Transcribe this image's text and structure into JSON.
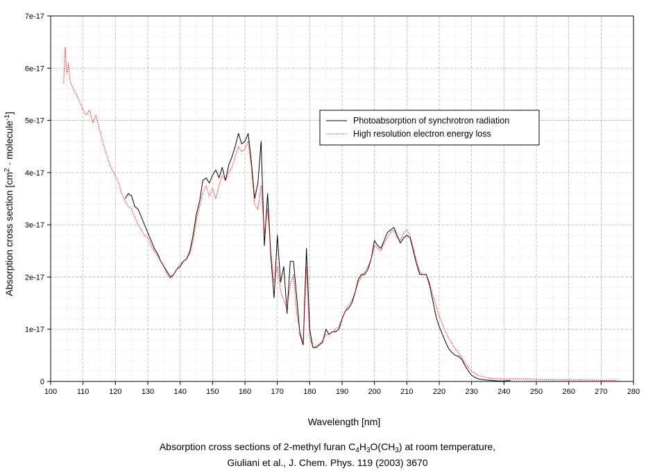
{
  "chart_data": {
    "type": "line",
    "xlabel": "Wavelength [nm]",
    "ylabel": {
      "prefix": "Absorption cross section [cm",
      "sup1": "2",
      "middle": " · molecule",
      "sup2": "-1",
      "suffix": "]"
    },
    "xlim": [
      100,
      280
    ],
    "ylim": [
      0,
      7e-17
    ],
    "x_ticks": [
      100,
      110,
      120,
      130,
      140,
      150,
      160,
      170,
      180,
      190,
      200,
      210,
      220,
      230,
      240,
      250,
      260,
      270,
      280
    ],
    "y_ticks": [
      {
        "value": 0,
        "label": "0"
      },
      {
        "value": 1e-17,
        "label": "1e-17"
      },
      {
        "value": 2e-17,
        "label": "2e-17"
      },
      {
        "value": 3e-17,
        "label": "3e-17"
      },
      {
        "value": 4e-17,
        "label": "4e-17"
      },
      {
        "value": 5e-17,
        "label": "5e-17"
      },
      {
        "value": 6e-17,
        "label": "6e-17"
      },
      {
        "value": 7e-17,
        "label": "7e-17"
      }
    ],
    "grid": true,
    "legend_position": "top-right",
    "series": [
      {
        "name": "Photoabsorption of synchrotron radiation",
        "color": "#000000",
        "style": "solid",
        "points": [
          [
            123,
            3.5e-17
          ],
          [
            124,
            3.6e-17
          ],
          [
            125,
            3.55e-17
          ],
          [
            126,
            3.35e-17
          ],
          [
            127,
            3.3e-17
          ],
          [
            128,
            3.15e-17
          ],
          [
            129,
            3e-17
          ],
          [
            130,
            2.85e-17
          ],
          [
            131,
            2.7e-17
          ],
          [
            132,
            2.55e-17
          ],
          [
            133,
            2.45e-17
          ],
          [
            134,
            2.3e-17
          ],
          [
            135,
            2.2e-17
          ],
          [
            136,
            2.1e-17
          ],
          [
            137,
            2e-17
          ],
          [
            138,
            2.05e-17
          ],
          [
            139,
            2.15e-17
          ],
          [
            140,
            2.2e-17
          ],
          [
            141,
            2.3e-17
          ],
          [
            142,
            2.35e-17
          ],
          [
            143,
            2.5e-17
          ],
          [
            144,
            2.8e-17
          ],
          [
            145,
            3.2e-17
          ],
          [
            146,
            3.45e-17
          ],
          [
            147,
            3.85e-17
          ],
          [
            148,
            3.9e-17
          ],
          [
            149,
            3.8e-17
          ],
          [
            150,
            3.95e-17
          ],
          [
            151,
            4.05e-17
          ],
          [
            152,
            3.9e-17
          ],
          [
            153,
            4.1e-17
          ],
          [
            154,
            3.85e-17
          ],
          [
            155,
            4.15e-17
          ],
          [
            156,
            4.3e-17
          ],
          [
            157,
            4.5e-17
          ],
          [
            158,
            4.75e-17
          ],
          [
            159,
            4.55e-17
          ],
          [
            160,
            4.6e-17
          ],
          [
            161,
            4.75e-17
          ],
          [
            162,
            4.2e-17
          ],
          [
            163,
            3.5e-17
          ],
          [
            164,
            3.8e-17
          ],
          [
            165,
            4.6e-17
          ],
          [
            166,
            2.6e-17
          ],
          [
            167,
            3.6e-17
          ],
          [
            168,
            2.4e-17
          ],
          [
            169,
            1.6e-17
          ],
          [
            170,
            2.8e-17
          ],
          [
            171,
            1.9e-17
          ],
          [
            172,
            2.2e-17
          ],
          [
            173,
            1.3e-17
          ],
          [
            174,
            2.3e-17
          ],
          [
            175,
            2.3e-17
          ],
          [
            176,
            1.6e-17
          ],
          [
            177,
            9e-18
          ],
          [
            178,
            7e-18
          ],
          [
            179,
            2.55e-17
          ],
          [
            180,
            1e-17
          ],
          [
            181,
            6.5e-18
          ],
          [
            182,
            6.5e-18
          ],
          [
            183,
            7e-18
          ],
          [
            184,
            7.5e-18
          ],
          [
            185,
            1e-17
          ],
          [
            186,
            9e-18
          ],
          [
            187,
            9.5e-18
          ],
          [
            188,
            9.5e-18
          ],
          [
            189,
            1e-17
          ],
          [
            190,
            1.2e-17
          ],
          [
            191,
            1.35e-17
          ],
          [
            192,
            1.4e-17
          ],
          [
            193,
            1.5e-17
          ],
          [
            194,
            1.7e-17
          ],
          [
            195,
            1.95e-17
          ],
          [
            196,
            2.05e-17
          ],
          [
            197,
            2.05e-17
          ],
          [
            198,
            2.15e-17
          ],
          [
            199,
            2.35e-17
          ],
          [
            200,
            2.7e-17
          ],
          [
            201,
            2.6e-17
          ],
          [
            202,
            2.55e-17
          ],
          [
            203,
            2.7e-17
          ],
          [
            204,
            2.85e-17
          ],
          [
            205,
            2.9e-17
          ],
          [
            206,
            2.95e-17
          ],
          [
            207,
            2.8e-17
          ],
          [
            208,
            2.65e-17
          ],
          [
            209,
            2.75e-17
          ],
          [
            210,
            2.8e-17
          ],
          [
            211,
            2.75e-17
          ],
          [
            212,
            2.5e-17
          ],
          [
            213,
            2.25e-17
          ],
          [
            214,
            2.05e-17
          ],
          [
            215,
            2.05e-17
          ],
          [
            216,
            2.05e-17
          ],
          [
            217,
            1.85e-17
          ],
          [
            218,
            1.55e-17
          ],
          [
            219,
            1.25e-17
          ],
          [
            220,
            1.05e-17
          ],
          [
            221,
            9e-18
          ],
          [
            222,
            7.5e-18
          ],
          [
            223,
            6.2e-18
          ],
          [
            224,
            5.5e-18
          ],
          [
            225,
            5e-18
          ],
          [
            226,
            4.8e-18
          ],
          [
            227,
            4.2e-18
          ],
          [
            228,
            3e-18
          ],
          [
            229,
            2e-18
          ],
          [
            230,
            1.2e-18
          ],
          [
            231,
            8e-19
          ],
          [
            232,
            5e-19
          ],
          [
            234,
            3e-19
          ],
          [
            236,
            2e-19
          ],
          [
            238,
            1e-19
          ],
          [
            240,
            1e-19
          ],
          [
            242,
            2e-19
          ]
        ]
      },
      {
        "name": "High resolution electron energy loss",
        "color": "#ff0000",
        "style": "dotted",
        "points": [
          [
            104,
            5.7e-17
          ],
          [
            104.5,
            6.4e-17
          ],
          [
            105,
            5.9e-17
          ],
          [
            105.5,
            6.1e-17
          ],
          [
            106,
            5.75e-17
          ],
          [
            107,
            5.6e-17
          ],
          [
            108,
            5.5e-17
          ],
          [
            109,
            5.35e-17
          ],
          [
            110,
            5.2e-17
          ],
          [
            111,
            5.1e-17
          ],
          [
            112,
            5.2e-17
          ],
          [
            113,
            4.95e-17
          ],
          [
            114,
            5.1e-17
          ],
          [
            115,
            4.85e-17
          ],
          [
            116,
            4.6e-17
          ],
          [
            117,
            4.4e-17
          ],
          [
            118,
            4.2e-17
          ],
          [
            119,
            4.05e-17
          ],
          [
            120,
            3.95e-17
          ],
          [
            121,
            3.8e-17
          ],
          [
            122,
            3.6e-17
          ],
          [
            123,
            3.45e-17
          ],
          [
            124,
            3.35e-17
          ],
          [
            125,
            3.3e-17
          ],
          [
            126,
            3.15e-17
          ],
          [
            127,
            3e-17
          ],
          [
            128,
            2.9e-17
          ],
          [
            129,
            2.8e-17
          ],
          [
            130,
            2.75e-17
          ],
          [
            131,
            2.6e-17
          ],
          [
            132,
            2.5e-17
          ],
          [
            133,
            2.4e-17
          ],
          [
            134,
            2.3e-17
          ],
          [
            135,
            2.2e-17
          ],
          [
            136,
            2.05e-17
          ],
          [
            137,
            1.97e-17
          ],
          [
            138,
            2.05e-17
          ],
          [
            139,
            2.15e-17
          ],
          [
            140,
            2.25e-17
          ],
          [
            141,
            2.3e-17
          ],
          [
            142,
            2.35e-17
          ],
          [
            143,
            2.45e-17
          ],
          [
            144,
            2.7e-17
          ],
          [
            145,
            3.1e-17
          ],
          [
            146,
            3.35e-17
          ],
          [
            147,
            3.6e-17
          ],
          [
            148,
            3.75e-17
          ],
          [
            149,
            3.55e-17
          ],
          [
            150,
            3.7e-17
          ],
          [
            151,
            3.5e-17
          ],
          [
            152,
            3.75e-17
          ],
          [
            153,
            3.95e-17
          ],
          [
            154,
            3.85e-17
          ],
          [
            155,
            4e-17
          ],
          [
            156,
            4.1e-17
          ],
          [
            157,
            4.3e-17
          ],
          [
            158,
            4.5e-17
          ],
          [
            159,
            4.4e-17
          ],
          [
            160,
            4.45e-17
          ],
          [
            161,
            4.6e-17
          ],
          [
            162,
            4.1e-17
          ],
          [
            163,
            3.4e-17
          ],
          [
            164,
            3.3e-17
          ],
          [
            165,
            3.75e-17
          ],
          [
            166,
            2.85e-17
          ],
          [
            167,
            3.3e-17
          ],
          [
            168,
            2.5e-17
          ],
          [
            169,
            1.9e-17
          ],
          [
            170,
            2.2e-17
          ],
          [
            171,
            1.75e-17
          ],
          [
            172,
            1.55e-17
          ],
          [
            173,
            1.4e-17
          ],
          [
            174,
            1.85e-17
          ],
          [
            175,
            2.05e-17
          ],
          [
            176,
            1.3e-17
          ],
          [
            177,
            9.5e-18
          ],
          [
            178,
            7.5e-18
          ],
          [
            179,
            2.2e-17
          ],
          [
            180,
            8.5e-18
          ],
          [
            181,
            6.5e-18
          ],
          [
            182,
            6.8e-18
          ],
          [
            183,
            7.2e-18
          ],
          [
            184,
            7.8e-18
          ],
          [
            185,
            9e-18
          ],
          [
            186,
            9e-18
          ],
          [
            187,
            9.5e-18
          ],
          [
            188,
            1e-17
          ],
          [
            189,
            1.05e-17
          ],
          [
            190,
            1.2e-17
          ],
          [
            191,
            1.35e-17
          ],
          [
            192,
            1.45e-17
          ],
          [
            193,
            1.55e-17
          ],
          [
            194,
            1.7e-17
          ],
          [
            195,
            1.9e-17
          ],
          [
            196,
            2e-17
          ],
          [
            197,
            2.1e-17
          ],
          [
            198,
            2.2e-17
          ],
          [
            199,
            2.35e-17
          ],
          [
            200,
            2.6e-17
          ],
          [
            201,
            2.55e-17
          ],
          [
            202,
            2.5e-17
          ],
          [
            203,
            2.65e-17
          ],
          [
            204,
            2.75e-17
          ],
          [
            205,
            2.85e-17
          ],
          [
            206,
            2.9e-17
          ],
          [
            207,
            2.75e-17
          ],
          [
            208,
            2.7e-17
          ],
          [
            209,
            2.85e-17
          ],
          [
            210,
            2.9e-17
          ],
          [
            211,
            2.8e-17
          ],
          [
            212,
            2.55e-17
          ],
          [
            213,
            2.3e-17
          ],
          [
            214,
            2.1e-17
          ],
          [
            215,
            2.05e-17
          ],
          [
            216,
            2.05e-17
          ],
          [
            217,
            1.9e-17
          ],
          [
            218,
            1.65e-17
          ],
          [
            219,
            1.45e-17
          ],
          [
            220,
            1.25e-17
          ],
          [
            221,
            1.1e-17
          ],
          [
            222,
            9.5e-18
          ],
          [
            223,
            8.2e-18
          ],
          [
            224,
            7.2e-18
          ],
          [
            225,
            6.2e-18
          ],
          [
            226,
            5.5e-18
          ],
          [
            227,
            4.5e-18
          ],
          [
            228,
            3.5e-18
          ],
          [
            229,
            2.7e-18
          ],
          [
            230,
            2e-18
          ],
          [
            232,
            1.2e-18
          ],
          [
            234,
            8e-19
          ],
          [
            236,
            6e-19
          ],
          [
            238,
            5e-19
          ],
          [
            240,
            5e-19
          ],
          [
            242,
            5e-19
          ],
          [
            245,
            5e-19
          ],
          [
            250,
            4e-19
          ],
          [
            255,
            3e-19
          ],
          [
            260,
            3e-19
          ],
          [
            265,
            3e-19
          ],
          [
            270,
            2e-19
          ],
          [
            275,
            2e-19
          ]
        ]
      }
    ]
  },
  "caption": {
    "line1": {
      "text1": "Absorption cross sections of 2-methyl furan C",
      "sub1": "4",
      "text2": "H",
      "sub2": "3",
      "text3": "O(CH",
      "sub3": "3",
      "text4": ") at room temperature,"
    },
    "line2": "Giuliani et al., J. Chem. Phys. 119 (2003) 3670"
  }
}
